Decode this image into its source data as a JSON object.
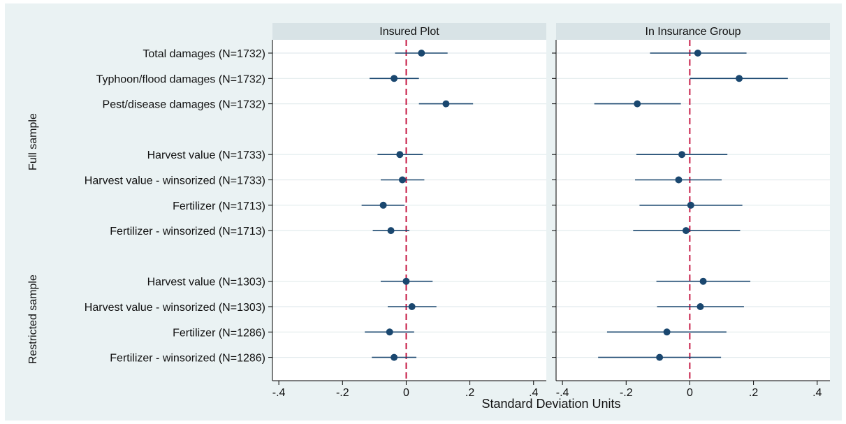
{
  "chart_data": {
    "type": "scatter",
    "subtype": "coefficient-plot-with-confidence-intervals",
    "xlabel": "Standard Deviation Units",
    "xlim": [
      -0.42,
      0.44
    ],
    "xticks": [
      -0.4,
      -0.2,
      0,
      0.2,
      0.4
    ],
    "xtick_labels": [
      "-.4",
      "-.2",
      "0",
      ".2",
      ".4"
    ],
    "reference_line": 0,
    "grid": "horizontal",
    "colors": {
      "background": "#ffffff",
      "plot_region": "#eaf2f3",
      "panel_header": "#d8e3e6",
      "marker": "#1a476f",
      "reference_line": "#c10534",
      "gridline": "#e2ebed"
    },
    "panels": [
      {
        "title": "Insured Plot"
      },
      {
        "title": "In Insurance Group"
      }
    ],
    "groups": [
      {
        "label": "Full sample",
        "rows": [
          0,
          1,
          2,
          3,
          4,
          5,
          6
        ]
      },
      {
        "label": "Restricted sample",
        "rows": [
          7,
          8,
          9,
          10
        ]
      }
    ],
    "rows": [
      {
        "label": "Total damages (N=1732)",
        "estimates": [
          {
            "value": 0.048,
            "lo": -0.035,
            "hi": 0.13
          },
          {
            "value": 0.025,
            "lo": -0.125,
            "hi": 0.178
          }
        ]
      },
      {
        "label": "Typhoon/flood damages (N=1732)",
        "estimates": [
          {
            "value": -0.038,
            "lo": -0.115,
            "hi": 0.04
          },
          {
            "value": 0.155,
            "lo": 0.0,
            "hi": 0.308
          }
        ]
      },
      {
        "label": "Pest/disease damages (N=1732)",
        "estimates": [
          {
            "value": 0.125,
            "lo": 0.04,
            "hi": 0.21
          },
          {
            "value": -0.165,
            "lo": -0.3,
            "hi": -0.028
          }
        ]
      },
      {
        "label": "Harvest value (N=1733)",
        "estimates": [
          {
            "value": -0.02,
            "lo": -0.09,
            "hi": 0.052
          },
          {
            "value": -0.025,
            "lo": -0.168,
            "hi": 0.118
          }
        ]
      },
      {
        "label": "Harvest value - winsorized (N=1733)",
        "estimates": [
          {
            "value": -0.012,
            "lo": -0.08,
            "hi": 0.057
          },
          {
            "value": -0.035,
            "lo": -0.172,
            "hi": 0.1
          }
        ]
      },
      {
        "label": "Fertilizer (N=1713)",
        "estimates": [
          {
            "value": -0.072,
            "lo": -0.14,
            "hi": -0.005
          },
          {
            "value": 0.003,
            "lo": -0.158,
            "hi": 0.165
          }
        ]
      },
      {
        "label": "Fertilizer - winsorized (N=1713)",
        "estimates": [
          {
            "value": -0.048,
            "lo": -0.105,
            "hi": 0.01
          },
          {
            "value": -0.012,
            "lo": -0.178,
            "hi": 0.158
          }
        ]
      },
      {
        "label": "Harvest value (N=1303)",
        "estimates": [
          {
            "value": 0.0,
            "lo": -0.08,
            "hi": 0.083
          },
          {
            "value": 0.042,
            "lo": -0.105,
            "hi": 0.19
          }
        ]
      },
      {
        "label": "Harvest value - winsorized (N=1303)",
        "estimates": [
          {
            "value": 0.018,
            "lo": -0.058,
            "hi": 0.095
          },
          {
            "value": 0.033,
            "lo": -0.103,
            "hi": 0.17
          }
        ]
      },
      {
        "label": "Fertilizer (N=1286)",
        "estimates": [
          {
            "value": -0.052,
            "lo": -0.13,
            "hi": 0.025
          },
          {
            "value": -0.072,
            "lo": -0.26,
            "hi": 0.115
          }
        ]
      },
      {
        "label": "Fertilizer - winsorized (N=1286)",
        "estimates": [
          {
            "value": -0.038,
            "lo": -0.108,
            "hi": 0.032
          },
          {
            "value": -0.095,
            "lo": -0.288,
            "hi": 0.098
          }
        ]
      }
    ]
  }
}
